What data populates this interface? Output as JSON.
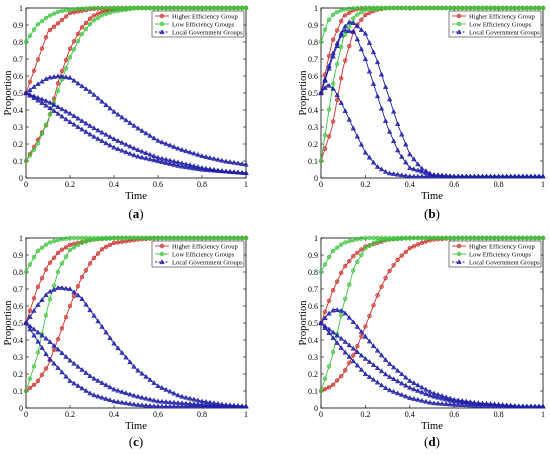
{
  "colors": {
    "higher": "#c9302c",
    "low": "#3cc43c",
    "local": "#1f1fa8"
  },
  "chart_data": [
    {
      "panel": "(a)",
      "panel_letter": "a",
      "type": "line",
      "xlabel": "Time",
      "ylabel": "Proportion",
      "xlim": [
        0,
        1
      ],
      "ylim": [
        0,
        1
      ],
      "x_ticks": [
        "0",
        "0.2",
        "0.4",
        "0.6",
        "0.8",
        "1"
      ],
      "y_ticks": [
        "0",
        "0.1",
        "0.2",
        "0.3",
        "0.4",
        "0.5",
        "0.6",
        "0.7",
        "0.8",
        "0.9",
        "1"
      ],
      "legend": {
        "position": "top-right",
        "entries": [
          "Higher Efficiency Group",
          "Low Efficiency Groups",
          "Local Government Groups"
        ]
      },
      "series": [
        {
          "group": "higher",
          "marker": "circle",
          "x": [
            0,
            0.1,
            0.2,
            0.3,
            0.4,
            0.5,
            0.6,
            0.8,
            1
          ],
          "y": [
            0.5,
            0.86,
            0.97,
            0.995,
            1,
            1,
            1,
            1,
            1
          ]
        },
        {
          "group": "higher",
          "marker": "circle",
          "x": [
            0,
            0.1,
            0.15,
            0.2,
            0.25,
            0.3,
            0.35,
            0.4,
            0.5,
            0.6,
            0.8,
            1
          ],
          "y": [
            0.1,
            0.33,
            0.58,
            0.76,
            0.88,
            0.95,
            0.98,
            0.99,
            1,
            1,
            1,
            1
          ]
        },
        {
          "group": "low",
          "marker": "circle",
          "x": [
            0,
            0.05,
            0.1,
            0.15,
            0.2,
            0.3,
            0.4,
            0.6,
            0.8,
            1
          ],
          "y": [
            0.8,
            0.9,
            0.95,
            0.98,
            0.99,
            1,
            1,
            1,
            1,
            1
          ]
        },
        {
          "group": "low",
          "marker": "circle",
          "x": [
            0,
            0.05,
            0.1,
            0.15,
            0.2,
            0.25,
            0.3,
            0.35,
            0.4,
            0.5,
            0.6,
            0.8,
            1
          ],
          "y": [
            0.1,
            0.19,
            0.34,
            0.53,
            0.71,
            0.84,
            0.92,
            0.96,
            0.98,
            1,
            1,
            1,
            1
          ]
        },
        {
          "group": "local",
          "marker": "triangle",
          "x": [
            0,
            0.05,
            0.1,
            0.15,
            0.2,
            0.3,
            0.4,
            0.5,
            0.6,
            0.7,
            0.8,
            0.9,
            1
          ],
          "y": [
            0.5,
            0.55,
            0.59,
            0.6,
            0.59,
            0.5,
            0.39,
            0.3,
            0.22,
            0.17,
            0.13,
            0.1,
            0.08
          ]
        },
        {
          "group": "local",
          "marker": "triangle",
          "x": [
            0,
            0.1,
            0.2,
            0.3,
            0.4,
            0.5,
            0.6,
            0.7,
            0.8,
            0.9,
            1
          ],
          "y": [
            0.5,
            0.45,
            0.38,
            0.3,
            0.23,
            0.17,
            0.12,
            0.09,
            0.06,
            0.04,
            0.03
          ]
        },
        {
          "group": "local",
          "marker": "triangle",
          "x": [
            0,
            0.1,
            0.2,
            0.3,
            0.4,
            0.5,
            0.6,
            0.7,
            0.8,
            0.9,
            1
          ],
          "y": [
            0.5,
            0.42,
            0.33,
            0.25,
            0.18,
            0.13,
            0.1,
            0.07,
            0.05,
            0.04,
            0.03
          ]
        }
      ]
    },
    {
      "panel": "(b)",
      "panel_letter": "b",
      "type": "line",
      "xlabel": "Time",
      "ylabel": "Proportion",
      "xlim": [
        0,
        1
      ],
      "ylim": [
        0,
        1
      ],
      "x_ticks": [
        "0",
        "0.2",
        "0.4",
        "0.6",
        "0.8",
        "1"
      ],
      "y_ticks": [
        "0",
        "0.1",
        "0.2",
        "0.3",
        "0.4",
        "0.5",
        "0.6",
        "0.7",
        "0.8",
        "0.9",
        "1"
      ],
      "legend": {
        "position": "top-right",
        "entries": [
          "Higher Efficiency Group",
          "Low Efficiency Groups",
          "Local Government Groups"
        ]
      },
      "series": [
        {
          "group": "higher",
          "marker": "circle",
          "x": [
            0,
            0.05,
            0.1,
            0.15,
            0.2,
            0.3,
            0.4,
            0.6,
            0.8,
            1
          ],
          "y": [
            0.5,
            0.8,
            0.95,
            0.99,
            1,
            1,
            1,
            1,
            1,
            1
          ]
        },
        {
          "group": "higher",
          "marker": "circle",
          "x": [
            0,
            0.05,
            0.1,
            0.15,
            0.2,
            0.25,
            0.3,
            0.4,
            0.6,
            0.8,
            1
          ],
          "y": [
            0.1,
            0.3,
            0.65,
            0.88,
            0.96,
            0.99,
            1,
            1,
            1,
            1,
            1
          ]
        },
        {
          "group": "low",
          "marker": "circle",
          "x": [
            0,
            0.03,
            0.06,
            0.1,
            0.15,
            0.2,
            0.3,
            0.6,
            1
          ],
          "y": [
            0.8,
            0.92,
            0.97,
            0.99,
            1,
            1,
            1,
            1,
            1
          ]
        },
        {
          "group": "low",
          "marker": "circle",
          "x": [
            0,
            0.03,
            0.06,
            0.1,
            0.15,
            0.2,
            0.3,
            0.6,
            1
          ],
          "y": [
            0.1,
            0.35,
            0.6,
            0.82,
            0.95,
            0.99,
            1,
            1,
            1
          ]
        },
        {
          "group": "local",
          "marker": "triangle",
          "x": [
            0,
            0.05,
            0.1,
            0.13,
            0.15,
            0.2,
            0.25,
            0.3,
            0.35,
            0.4,
            0.45,
            0.5,
            0.6,
            0.8,
            1
          ],
          "y": [
            0.5,
            0.72,
            0.88,
            0.92,
            0.91,
            0.85,
            0.7,
            0.5,
            0.3,
            0.14,
            0.06,
            0.02,
            0.01,
            0.01,
            0.01
          ]
        },
        {
          "group": "local",
          "marker": "triangle",
          "x": [
            0,
            0.03,
            0.06,
            0.1,
            0.15,
            0.2,
            0.25,
            0.3,
            0.4,
            0.5,
            0.6,
            0.8,
            1
          ],
          "y": [
            0.5,
            0.55,
            0.52,
            0.42,
            0.28,
            0.15,
            0.07,
            0.03,
            0.01,
            0.01,
            0.01,
            0.01,
            0.01
          ]
        },
        {
          "group": "local",
          "marker": "triangle",
          "x": [
            0,
            0.05,
            0.1,
            0.15,
            0.2,
            0.25,
            0.3,
            0.35,
            0.4,
            0.5,
            0.6,
            0.8,
            1
          ],
          "y": [
            0.5,
            0.7,
            0.87,
            0.86,
            0.7,
            0.5,
            0.3,
            0.15,
            0.06,
            0.02,
            0.01,
            0.01,
            0.01
          ]
        }
      ]
    },
    {
      "panel": "(c)",
      "panel_letter": "c",
      "type": "line",
      "xlabel": "Time",
      "ylabel": "Proportion",
      "xlim": [
        0,
        1
      ],
      "ylim": [
        0,
        1
      ],
      "x_ticks": [
        "0",
        "0.2",
        "0.4",
        "0.6",
        "0.8",
        "1"
      ],
      "y_ticks": [
        "0",
        "0.1",
        "0.2",
        "0.3",
        "0.4",
        "0.5",
        "0.6",
        "0.7",
        "0.8",
        "0.9",
        "1"
      ],
      "legend": {
        "position": "top-right",
        "entries": [
          "Higher Efficiency Group",
          "Low Efficiency Groups",
          "Local Government Groups"
        ]
      },
      "series": [
        {
          "group": "higher",
          "marker": "circle",
          "x": [
            0,
            0.05,
            0.1,
            0.15,
            0.2,
            0.3,
            0.4,
            0.6,
            0.8,
            1
          ],
          "y": [
            0.5,
            0.7,
            0.84,
            0.92,
            0.96,
            0.99,
            1,
            1,
            1,
            1
          ]
        },
        {
          "group": "higher",
          "marker": "circle",
          "x": [
            0,
            0.05,
            0.1,
            0.15,
            0.2,
            0.25,
            0.3,
            0.35,
            0.4,
            0.5,
            0.6,
            0.8,
            1
          ],
          "y": [
            0.1,
            0.15,
            0.25,
            0.42,
            0.6,
            0.76,
            0.87,
            0.94,
            0.97,
            0.99,
            1,
            1,
            1
          ]
        },
        {
          "group": "low",
          "marker": "circle",
          "x": [
            0,
            0.05,
            0.1,
            0.15,
            0.2,
            0.3,
            0.4,
            0.6,
            1
          ],
          "y": [
            0.8,
            0.92,
            0.97,
            0.99,
            1,
            1,
            1,
            1,
            1
          ]
        },
        {
          "group": "low",
          "marker": "circle",
          "x": [
            0,
            0.05,
            0.1,
            0.15,
            0.2,
            0.25,
            0.3,
            0.4,
            0.6,
            0.8,
            1
          ],
          "y": [
            0.1,
            0.3,
            0.6,
            0.82,
            0.93,
            0.97,
            0.99,
            1,
            1,
            1,
            1
          ]
        },
        {
          "group": "local",
          "marker": "triangle",
          "x": [
            0,
            0.05,
            0.1,
            0.15,
            0.2,
            0.25,
            0.3,
            0.4,
            0.5,
            0.6,
            0.7,
            0.8,
            0.9,
            1
          ],
          "y": [
            0.5,
            0.6,
            0.68,
            0.71,
            0.7,
            0.65,
            0.56,
            0.38,
            0.23,
            0.13,
            0.07,
            0.04,
            0.02,
            0.01
          ]
        },
        {
          "group": "local",
          "marker": "triangle",
          "x": [
            0,
            0.1,
            0.2,
            0.3,
            0.4,
            0.5,
            0.6,
            0.7,
            0.8,
            0.9,
            1
          ],
          "y": [
            0.5,
            0.4,
            0.28,
            0.18,
            0.11,
            0.07,
            0.04,
            0.03,
            0.02,
            0.01,
            0.01
          ]
        },
        {
          "group": "local",
          "marker": "triangle",
          "x": [
            0,
            0.05,
            0.1,
            0.2,
            0.3,
            0.4,
            0.5,
            0.6,
            0.8,
            1
          ],
          "y": [
            0.5,
            0.4,
            0.3,
            0.16,
            0.08,
            0.04,
            0.02,
            0.01,
            0.01,
            0.01
          ]
        }
      ]
    },
    {
      "panel": "(d)",
      "panel_letter": "d",
      "type": "line",
      "xlabel": "Time",
      "ylabel": "Proportion",
      "xlim": [
        0,
        1
      ],
      "ylim": [
        0,
        1
      ],
      "x_ticks": [
        "0",
        "0.2",
        "0.4",
        "0.6",
        "0.8",
        "1"
      ],
      "y_ticks": [
        "0",
        "0.1",
        "0.2",
        "0.3",
        "0.4",
        "0.5",
        "0.6",
        "0.7",
        "0.8",
        "0.9",
        "1"
      ],
      "legend": {
        "position": "top-right",
        "entries": [
          "Higher Efficiency Group",
          "Low Efficiency Groups",
          "Local Government Groups"
        ]
      },
      "series": [
        {
          "group": "higher",
          "marker": "circle",
          "x": [
            0,
            0.05,
            0.1,
            0.15,
            0.2,
            0.25,
            0.3,
            0.4,
            0.6,
            0.8,
            1
          ],
          "y": [
            0.5,
            0.68,
            0.82,
            0.9,
            0.95,
            0.97,
            0.99,
            1,
            1,
            1,
            1
          ]
        },
        {
          "group": "higher",
          "marker": "circle",
          "x": [
            0,
            0.05,
            0.1,
            0.15,
            0.2,
            0.25,
            0.3,
            0.35,
            0.4,
            0.45,
            0.5,
            0.6,
            0.8,
            1
          ],
          "y": [
            0.1,
            0.13,
            0.2,
            0.32,
            0.48,
            0.65,
            0.79,
            0.88,
            0.94,
            0.97,
            0.99,
            1,
            1,
            1
          ]
        },
        {
          "group": "low",
          "marker": "circle",
          "x": [
            0,
            0.05,
            0.1,
            0.15,
            0.2,
            0.3,
            0.4,
            0.6,
            1
          ],
          "y": [
            0.8,
            0.92,
            0.97,
            0.99,
            1,
            1,
            1,
            1,
            1
          ]
        },
        {
          "group": "low",
          "marker": "circle",
          "x": [
            0,
            0.05,
            0.1,
            0.15,
            0.2,
            0.25,
            0.3,
            0.4,
            0.6,
            0.8,
            1
          ],
          "y": [
            0.1,
            0.3,
            0.6,
            0.83,
            0.94,
            0.98,
            0.99,
            1,
            1,
            1,
            1
          ]
        },
        {
          "group": "local",
          "marker": "triangle",
          "x": [
            0,
            0.03,
            0.06,
            0.1,
            0.15,
            0.2,
            0.3,
            0.4,
            0.5,
            0.6,
            0.7,
            0.8,
            0.9,
            1
          ],
          "y": [
            0.5,
            0.55,
            0.58,
            0.57,
            0.5,
            0.42,
            0.27,
            0.16,
            0.09,
            0.05,
            0.03,
            0.02,
            0.01,
            0.01
          ]
        },
        {
          "group": "local",
          "marker": "triangle",
          "x": [
            0,
            0.1,
            0.2,
            0.3,
            0.4,
            0.5,
            0.6,
            0.7,
            0.8,
            0.9,
            1
          ],
          "y": [
            0.5,
            0.4,
            0.29,
            0.19,
            0.12,
            0.07,
            0.04,
            0.03,
            0.02,
            0.01,
            0.01
          ]
        },
        {
          "group": "local",
          "marker": "triangle",
          "x": [
            0,
            0.05,
            0.1,
            0.2,
            0.3,
            0.4,
            0.5,
            0.6,
            0.8,
            1
          ],
          "y": [
            0.5,
            0.42,
            0.34,
            0.2,
            0.11,
            0.06,
            0.03,
            0.02,
            0.01,
            0.01
          ]
        }
      ]
    }
  ]
}
